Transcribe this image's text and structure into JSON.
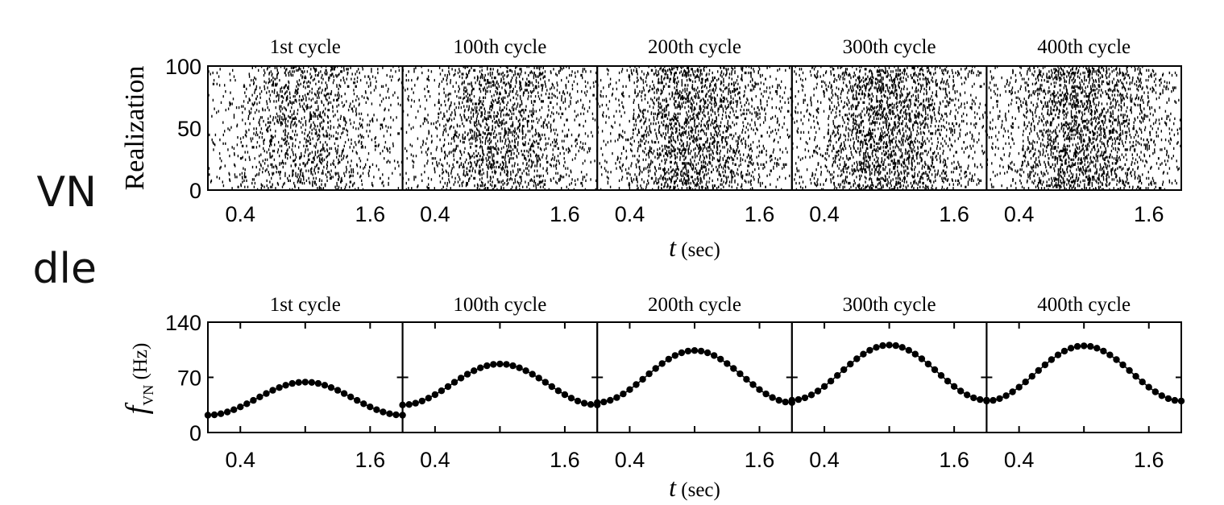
{
  "slide": {
    "line1": "VN",
    "line2": "dle"
  },
  "colors": {
    "ink": "#000000",
    "background": "#ffffff"
  },
  "chart_data": [
    {
      "type": "scatter",
      "title": "",
      "panels": [
        "1st cycle",
        "100th cycle",
        "200th cycle",
        "300th cycle",
        "400th cycle"
      ],
      "ylabel": "Realization",
      "xlabel_symbol": "t",
      "xlabel_unit": "(sec)",
      "yticks": [
        "0",
        "50",
        "100"
      ],
      "ylim": [
        0,
        100
      ],
      "xticks": [
        "0.4",
        "1.6"
      ],
      "xtick_values": [
        0.4,
        1.6
      ],
      "xlim": [
        0.1,
        1.9
      ],
      "density_peak_t": 1.0,
      "spike_density": [
        0.4,
        0.5,
        0.58,
        0.62,
        0.62
      ]
    },
    {
      "type": "line",
      "title": "",
      "panels": [
        "1st cycle",
        "100th cycle",
        "200th cycle",
        "300th cycle",
        "400th cycle"
      ],
      "ylabel_symbol": "f",
      "ylabel_subscript": "VN",
      "ylabel_unit": "(Hz)",
      "xlabel_symbol": "t",
      "xlabel_unit": "(sec)",
      "yticks": [
        "0",
        "70",
        "140"
      ],
      "ylim": [
        0,
        140
      ],
      "xticks": [
        "0.4",
        "1.6"
      ],
      "xtick_values": [
        0.4,
        1.6
      ],
      "xlim": [
        0.1,
        1.9
      ],
      "series": [
        {
          "panel": "1st cycle",
          "base": 43,
          "amplitude": 21
        },
        {
          "panel": "100th cycle",
          "base": 61,
          "amplitude": 26
        },
        {
          "panel": "200th cycle",
          "base": 71,
          "amplitude": 33
        },
        {
          "panel": "300th cycle",
          "base": 76,
          "amplitude": 35
        },
        {
          "panel": "400th cycle",
          "base": 75,
          "amplitude": 35
        }
      ],
      "period_sec": 1.8,
      "peak_t": 1.0,
      "marker": "filled-circle"
    }
  ]
}
